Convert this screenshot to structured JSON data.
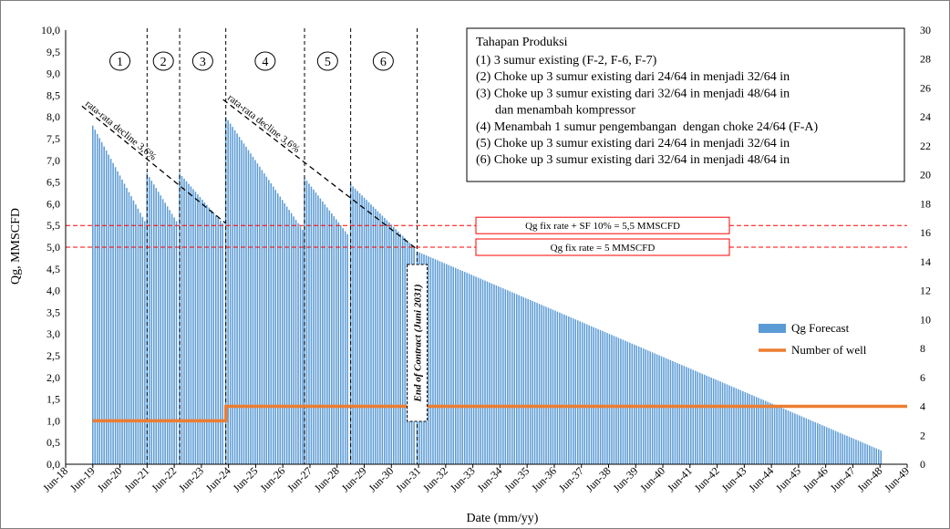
{
  "chart_data": {
    "type": "bar",
    "ylabel": "Qg, MMSCFD",
    "xlabel": "Date (mm/yy)",
    "ylim": [
      0,
      10
    ],
    "y2lim": [
      0,
      30
    ],
    "y_ticks": [
      "0,0",
      "0,5",
      "1,0",
      "1,5",
      "2,0",
      "2,5",
      "3,0",
      "3,5",
      "4,0",
      "4,5",
      "5,0",
      "5,5",
      "6,0",
      "6,5",
      "7,0",
      "7,5",
      "8,0",
      "8,5",
      "9,0",
      "9,5",
      "10,0"
    ],
    "y2_ticks": [
      "0",
      "2",
      "4",
      "6",
      "8",
      "10",
      "12",
      "14",
      "16",
      "18",
      "20",
      "22",
      "24",
      "26",
      "28",
      "30"
    ],
    "x_ticks": [
      "Jun-18",
      "Jun-19",
      "Jun-20",
      "Jun-21",
      "Jun-22",
      "Jun-23",
      "Jun-24",
      "Jun-25",
      "Jun-26",
      "Jun-27",
      "Jun-28",
      "Jun-29",
      "Jun-30",
      "Jun-31",
      "Jun-32",
      "Jun-33",
      "Jun-34",
      "Jun-35",
      "Jun-36",
      "Jun-37",
      "Jun-38",
      "Jun-39",
      "Jun-40",
      "Jun-41",
      "Jun-42",
      "Jun-43",
      "Jun-44",
      "Jun-45",
      "Jun-46",
      "Jun-47",
      "Jun-48",
      "Jun-49"
    ],
    "legend": [
      {
        "name": "Qg Forecast",
        "color": "#5b9bd5"
      },
      {
        "name": "Number of well",
        "color": "#ed7d31"
      }
    ],
    "legend_position": "right",
    "grid": false,
    "series": [
      {
        "name": "Qg Forecast",
        "axis": "left",
        "segments": [
          {
            "start": 1.0,
            "end": 3.0,
            "from": 7.8,
            "to": 5.6
          },
          {
            "start": 3.0,
            "end": 4.2,
            "from": 6.7,
            "to": 5.6
          },
          {
            "start": 4.2,
            "end": 5.9,
            "from": 6.7,
            "to": 5.55
          },
          {
            "start": 5.9,
            "end": 8.8,
            "from": 8.0,
            "to": 5.4
          },
          {
            "start": 8.8,
            "end": 10.5,
            "from": 6.6,
            "to": 5.3
          },
          {
            "start": 10.5,
            "end": 12.95,
            "from": 6.45,
            "to": 5.0
          },
          {
            "start": 12.95,
            "end": 30.1,
            "from": 4.9,
            "to": 0.32
          }
        ]
      },
      {
        "name": "Number of well",
        "axis": "right",
        "points": [
          [
            1.0,
            3
          ],
          [
            5.9,
            3
          ],
          [
            5.9,
            4
          ],
          [
            31.0,
            4
          ]
        ]
      }
    ],
    "stage_dividers": [
      3.0,
      4.2,
      5.9,
      8.8,
      10.5,
      12.95
    ],
    "stages": [
      {
        "label": "1",
        "x": 2.0
      },
      {
        "label": "2",
        "x": 3.6
      },
      {
        "label": "3",
        "x": 5.05
      },
      {
        "label": "4",
        "x": 7.35
      },
      {
        "label": "5",
        "x": 9.65
      },
      {
        "label": "6",
        "x": 11.7
      }
    ],
    "reference_lines": [
      {
        "y": 5.5,
        "label": "Qg fix rate + SF 10% = 5,5 MMSCFD"
      },
      {
        "y": 5.0,
        "label": "Qg fix rate = 5 MMSCFD"
      }
    ],
    "decline_annotations": [
      {
        "label": "rata-rata decline 3,6%",
        "from": [
          0.6,
          8.25
        ],
        "to": [
          5.9,
          5.55
        ]
      },
      {
        "label": "rata-rata decline 3,6%",
        "from": [
          5.8,
          8.4
        ],
        "to": [
          12.95,
          4.95
        ]
      }
    ],
    "end_of_contract": {
      "label": "End of Contract (Juni 2031)",
      "x": 12.95
    },
    "notes": {
      "title": "Tahapan Produksi",
      "lines": [
        "(1) 3 sumur existing (F-2, F-6, F-7)",
        "(2) Choke up 3 sumur existing dari 24/64 in menjadi 32/64 in",
        "(3) Choke up 3 sumur existing dari 32/64 in menjadi 48/64 in",
        "      dan menambah kompressor",
        "(4) Menambah 1 sumur pengembangan  dengan choke 24/64 (F-A)",
        "(5) Choke up 3 sumur existing dari 24/64 in menjadi 32/64 in",
        "(6) Choke up 3 sumur existing dari 32/64 in menjadi 48/64 in"
      ]
    }
  }
}
